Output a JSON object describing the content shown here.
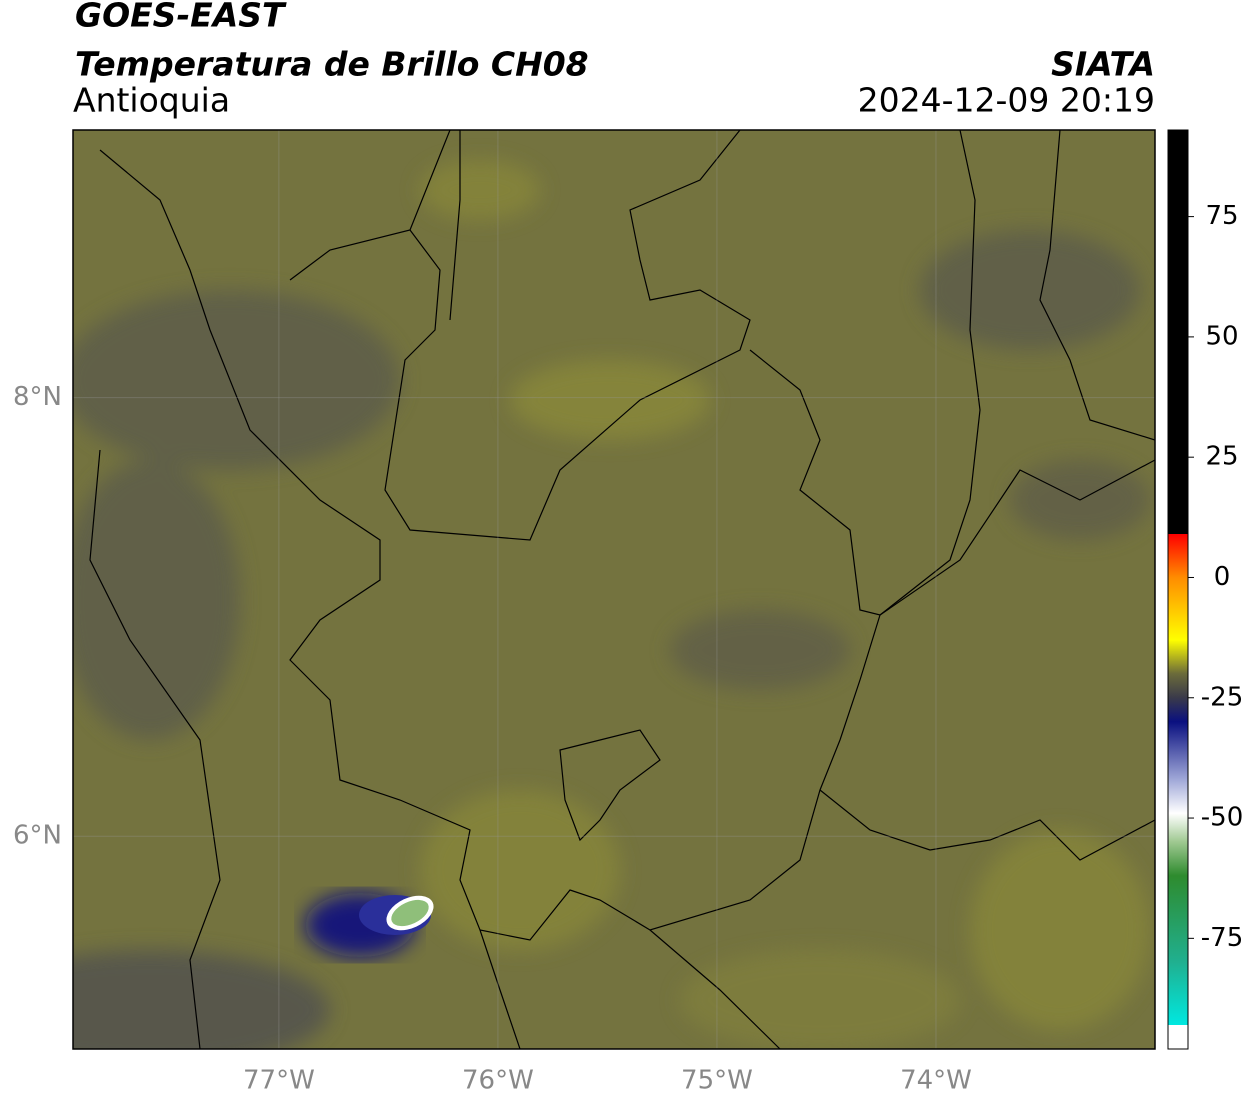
{
  "header": {
    "title": "GOES-EAST",
    "subtitle": "Temperatura de Brillo CH08",
    "region": "Antioquia",
    "source": "SIATA",
    "datetime": "2024-12-09 20:19"
  },
  "map": {
    "xlim": [
      -77.94,
      -73.0
    ],
    "ylim": [
      5.03,
      9.22
    ],
    "xticks": [
      {
        "value": -77,
        "label": "77°W"
      },
      {
        "value": -76,
        "label": "76°W"
      },
      {
        "value": -75,
        "label": "75°W"
      },
      {
        "value": -74,
        "label": "74°W"
      }
    ],
    "yticks": [
      {
        "value": 8,
        "label": "8°N"
      },
      {
        "value": 6,
        "label": "6°N"
      }
    ],
    "grid": true
  },
  "colorbar": {
    "lim": [
      -98,
      93
    ],
    "ticks": [
      75,
      50,
      25,
      0,
      -25,
      -50,
      -75
    ],
    "stops": [
      {
        "value": 93,
        "color": "#000000"
      },
      {
        "value": 9,
        "color": "#000000"
      },
      {
        "value": 9,
        "color": "#ff0000"
      },
      {
        "value": 0,
        "color": "#ff8c00"
      },
      {
        "value": -13,
        "color": "#ffff00"
      },
      {
        "value": -20,
        "color": "#6b6b3a"
      },
      {
        "value": -25,
        "color": "#3a3a4a"
      },
      {
        "value": -30,
        "color": "#0a1080"
      },
      {
        "value": -42,
        "color": "#a0a8d8"
      },
      {
        "value": -49,
        "color": "#ffffff"
      },
      {
        "value": -55,
        "color": "#9ec890"
      },
      {
        "value": -62,
        "color": "#2e8b2e"
      },
      {
        "value": -80,
        "color": "#20b090"
      },
      {
        "value": -93,
        "color": "#00e8e0"
      },
      {
        "value": -93,
        "color": "#ffffff"
      },
      {
        "value": -98,
        "color": "#ffffff"
      }
    ]
  }
}
